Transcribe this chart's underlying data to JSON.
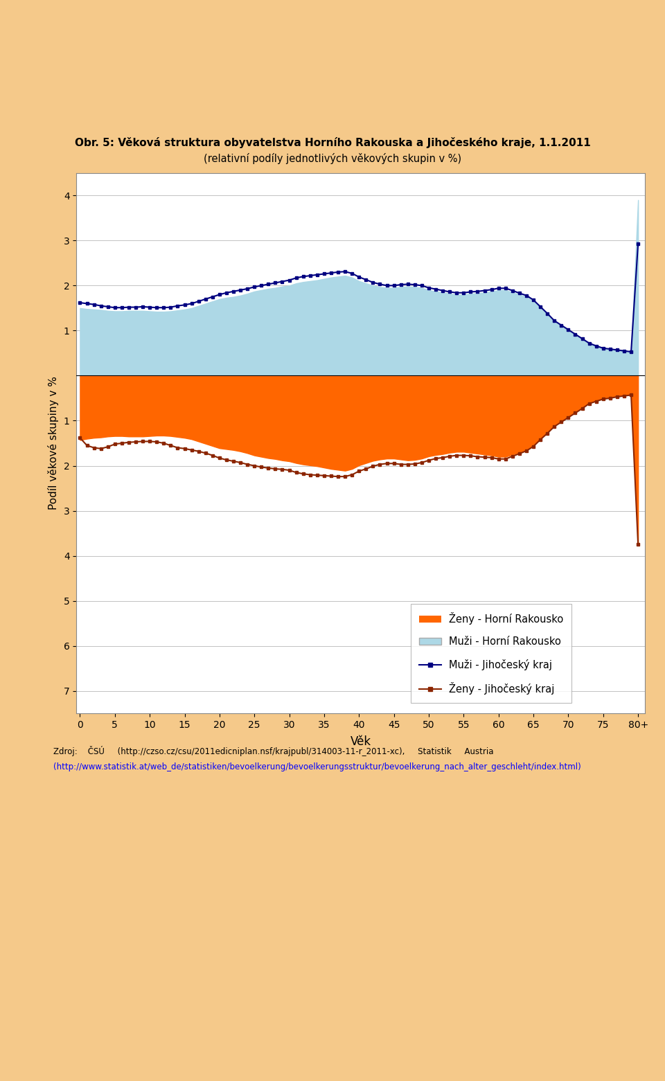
{
  "title_line1": "Obr. 5: Věková struktura obyvatelstva Horního Rakouska a Jihočeského kraje, 1.1.2011",
  "title_line2": "(relativní podíly jednotlivých věkových skupin v %)",
  "xlabel": "Věk",
  "ylabel": "Podíl věkové skupiny v %",
  "background_outer": "#F5C98A",
  "background_plot": "#FFFFFF",
  "color_zen_horni": "#FF6600",
  "color_muzi_horni": "#ADD8E6",
  "color_muzi_jihoceski": "#000080",
  "color_zen_jihoceski": "#8B2500",
  "ylim": [
    -7.5,
    4.5
  ],
  "xlim": [
    -0.5,
    81
  ],
  "ages": [
    0,
    1,
    2,
    3,
    4,
    5,
    6,
    7,
    8,
    9,
    10,
    11,
    12,
    13,
    14,
    15,
    16,
    17,
    18,
    19,
    20,
    21,
    22,
    23,
    24,
    25,
    26,
    27,
    28,
    29,
    30,
    31,
    32,
    33,
    34,
    35,
    36,
    37,
    38,
    39,
    40,
    41,
    42,
    43,
    44,
    45,
    46,
    47,
    48,
    49,
    50,
    51,
    52,
    53,
    54,
    55,
    56,
    57,
    58,
    59,
    60,
    61,
    62,
    63,
    64,
    65,
    66,
    67,
    68,
    69,
    70,
    71,
    72,
    73,
    74,
    75,
    76,
    77,
    78,
    79,
    80
  ],
  "muzi_horni": [
    1.5,
    1.48,
    1.47,
    1.46,
    1.44,
    1.43,
    1.43,
    1.44,
    1.44,
    1.44,
    1.43,
    1.42,
    1.42,
    1.43,
    1.45,
    1.47,
    1.5,
    1.55,
    1.6,
    1.65,
    1.7,
    1.73,
    1.75,
    1.78,
    1.82,
    1.87,
    1.9,
    1.93,
    1.95,
    1.98,
    2.0,
    2.05,
    2.08,
    2.1,
    2.12,
    2.15,
    2.18,
    2.2,
    2.22,
    2.18,
    2.1,
    2.05,
    2.0,
    1.97,
    1.95,
    1.95,
    1.97,
    1.98,
    1.97,
    1.95,
    1.9,
    1.87,
    1.85,
    1.82,
    1.8,
    1.8,
    1.82,
    1.83,
    1.85,
    1.87,
    1.9,
    1.9,
    1.85,
    1.8,
    1.75,
    1.65,
    1.5,
    1.35,
    1.2,
    1.1,
    1.0,
    0.9,
    0.8,
    0.7,
    0.65,
    0.6,
    0.58,
    0.56,
    0.54,
    0.52,
    3.9
  ],
  "muzi_jihoceski": [
    1.62,
    1.6,
    1.58,
    1.55,
    1.53,
    1.51,
    1.51,
    1.52,
    1.52,
    1.53,
    1.52,
    1.51,
    1.51,
    1.52,
    1.55,
    1.57,
    1.6,
    1.65,
    1.7,
    1.75,
    1.8,
    1.84,
    1.87,
    1.9,
    1.93,
    1.97,
    2.0,
    2.03,
    2.06,
    2.09,
    2.12,
    2.17,
    2.2,
    2.22,
    2.24,
    2.26,
    2.28,
    2.3,
    2.31,
    2.27,
    2.19,
    2.13,
    2.07,
    2.03,
    2.0,
    2.0,
    2.02,
    2.03,
    2.02,
    2.0,
    1.95,
    1.92,
    1.89,
    1.86,
    1.84,
    1.84,
    1.86,
    1.87,
    1.89,
    1.91,
    1.94,
    1.94,
    1.89,
    1.83,
    1.78,
    1.68,
    1.53,
    1.38,
    1.22,
    1.12,
    1.02,
    0.92,
    0.82,
    0.72,
    0.66,
    0.61,
    0.59,
    0.57,
    0.55,
    0.53,
    2.93
  ],
  "zen_horni": [
    1.43,
    1.4,
    1.38,
    1.37,
    1.35,
    1.34,
    1.34,
    1.35,
    1.35,
    1.35,
    1.34,
    1.33,
    1.33,
    1.34,
    1.36,
    1.38,
    1.41,
    1.46,
    1.51,
    1.56,
    1.61,
    1.63,
    1.65,
    1.68,
    1.72,
    1.77,
    1.8,
    1.83,
    1.85,
    1.88,
    1.9,
    1.94,
    1.97,
    1.99,
    2.01,
    2.04,
    2.07,
    2.09,
    2.11,
    2.07,
    1.99,
    1.94,
    1.89,
    1.86,
    1.84,
    1.84,
    1.86,
    1.88,
    1.87,
    1.84,
    1.79,
    1.76,
    1.74,
    1.71,
    1.69,
    1.69,
    1.71,
    1.73,
    1.75,
    1.77,
    1.8,
    1.8,
    1.75,
    1.7,
    1.65,
    1.55,
    1.4,
    1.25,
    1.1,
    1.0,
    0.9,
    0.8,
    0.7,
    0.6,
    0.55,
    0.5,
    0.48,
    0.46,
    0.44,
    0.42,
    3.7
  ],
  "zen_jihoceski": [
    1.38,
    1.55,
    1.6,
    1.62,
    1.58,
    1.52,
    1.5,
    1.48,
    1.47,
    1.46,
    1.46,
    1.47,
    1.5,
    1.55,
    1.6,
    1.62,
    1.65,
    1.68,
    1.72,
    1.77,
    1.83,
    1.87,
    1.9,
    1.93,
    1.97,
    2.0,
    2.03,
    2.05,
    2.07,
    2.08,
    2.1,
    2.15,
    2.18,
    2.2,
    2.21,
    2.22,
    2.23,
    2.24,
    2.24,
    2.2,
    2.12,
    2.07,
    2.01,
    1.97,
    1.95,
    1.95,
    1.97,
    1.97,
    1.96,
    1.93,
    1.88,
    1.84,
    1.82,
    1.79,
    1.77,
    1.77,
    1.78,
    1.8,
    1.81,
    1.82,
    1.85,
    1.85,
    1.79,
    1.73,
    1.67,
    1.57,
    1.42,
    1.28,
    1.13,
    1.03,
    0.93,
    0.83,
    0.73,
    0.62,
    0.57,
    0.52,
    0.5,
    0.47,
    0.45,
    0.43,
    3.75
  ],
  "footer_text1": "Zdroj:    ČSÚ     (http://czso.cz/csu/2011edicniplan.nsf/krajpubl/314003-11-r_2011-xc),     Statistik     Austria",
  "footer_text2": "(http://www.statistik.at/web_de/statistiken/bevoelkerung/bevoelkerungsstruktur/bevoelkerung_nach_alter_geschleht/index.html)"
}
